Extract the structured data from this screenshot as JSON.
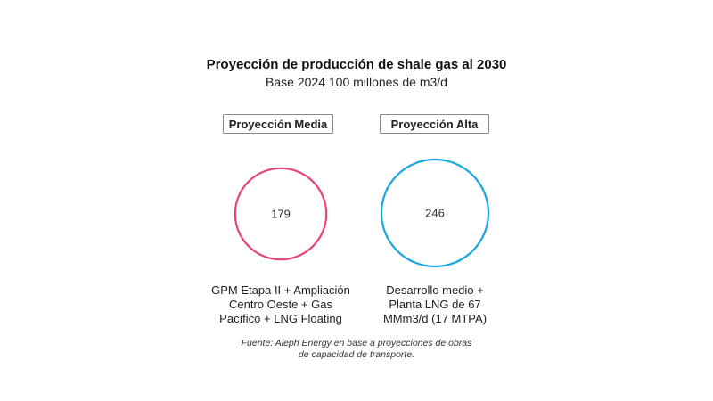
{
  "chart_data": {
    "type": "bubble",
    "title": "Proyección de producción de shale gas al 2030",
    "subtitle": "Base 2024 100 millones de m3/d",
    "series": [
      {
        "name": "Proyección Media",
        "value": 179,
        "color": "#e8437a",
        "description": "GPM Etapa II + Ampliación\nCentro Oeste + Gas\nPacífico + LNG Floating"
      },
      {
        "name": "Proyección Alta",
        "value": 246,
        "color": "#1aa6e0",
        "description": "Desarrollo medio +\nPlanta LNG de 67\nMMm3/d (17 MTPA)"
      }
    ],
    "source": "Fuente: Aleph Energy en base a proyecciones de obras\nde capacidad de transporte."
  }
}
